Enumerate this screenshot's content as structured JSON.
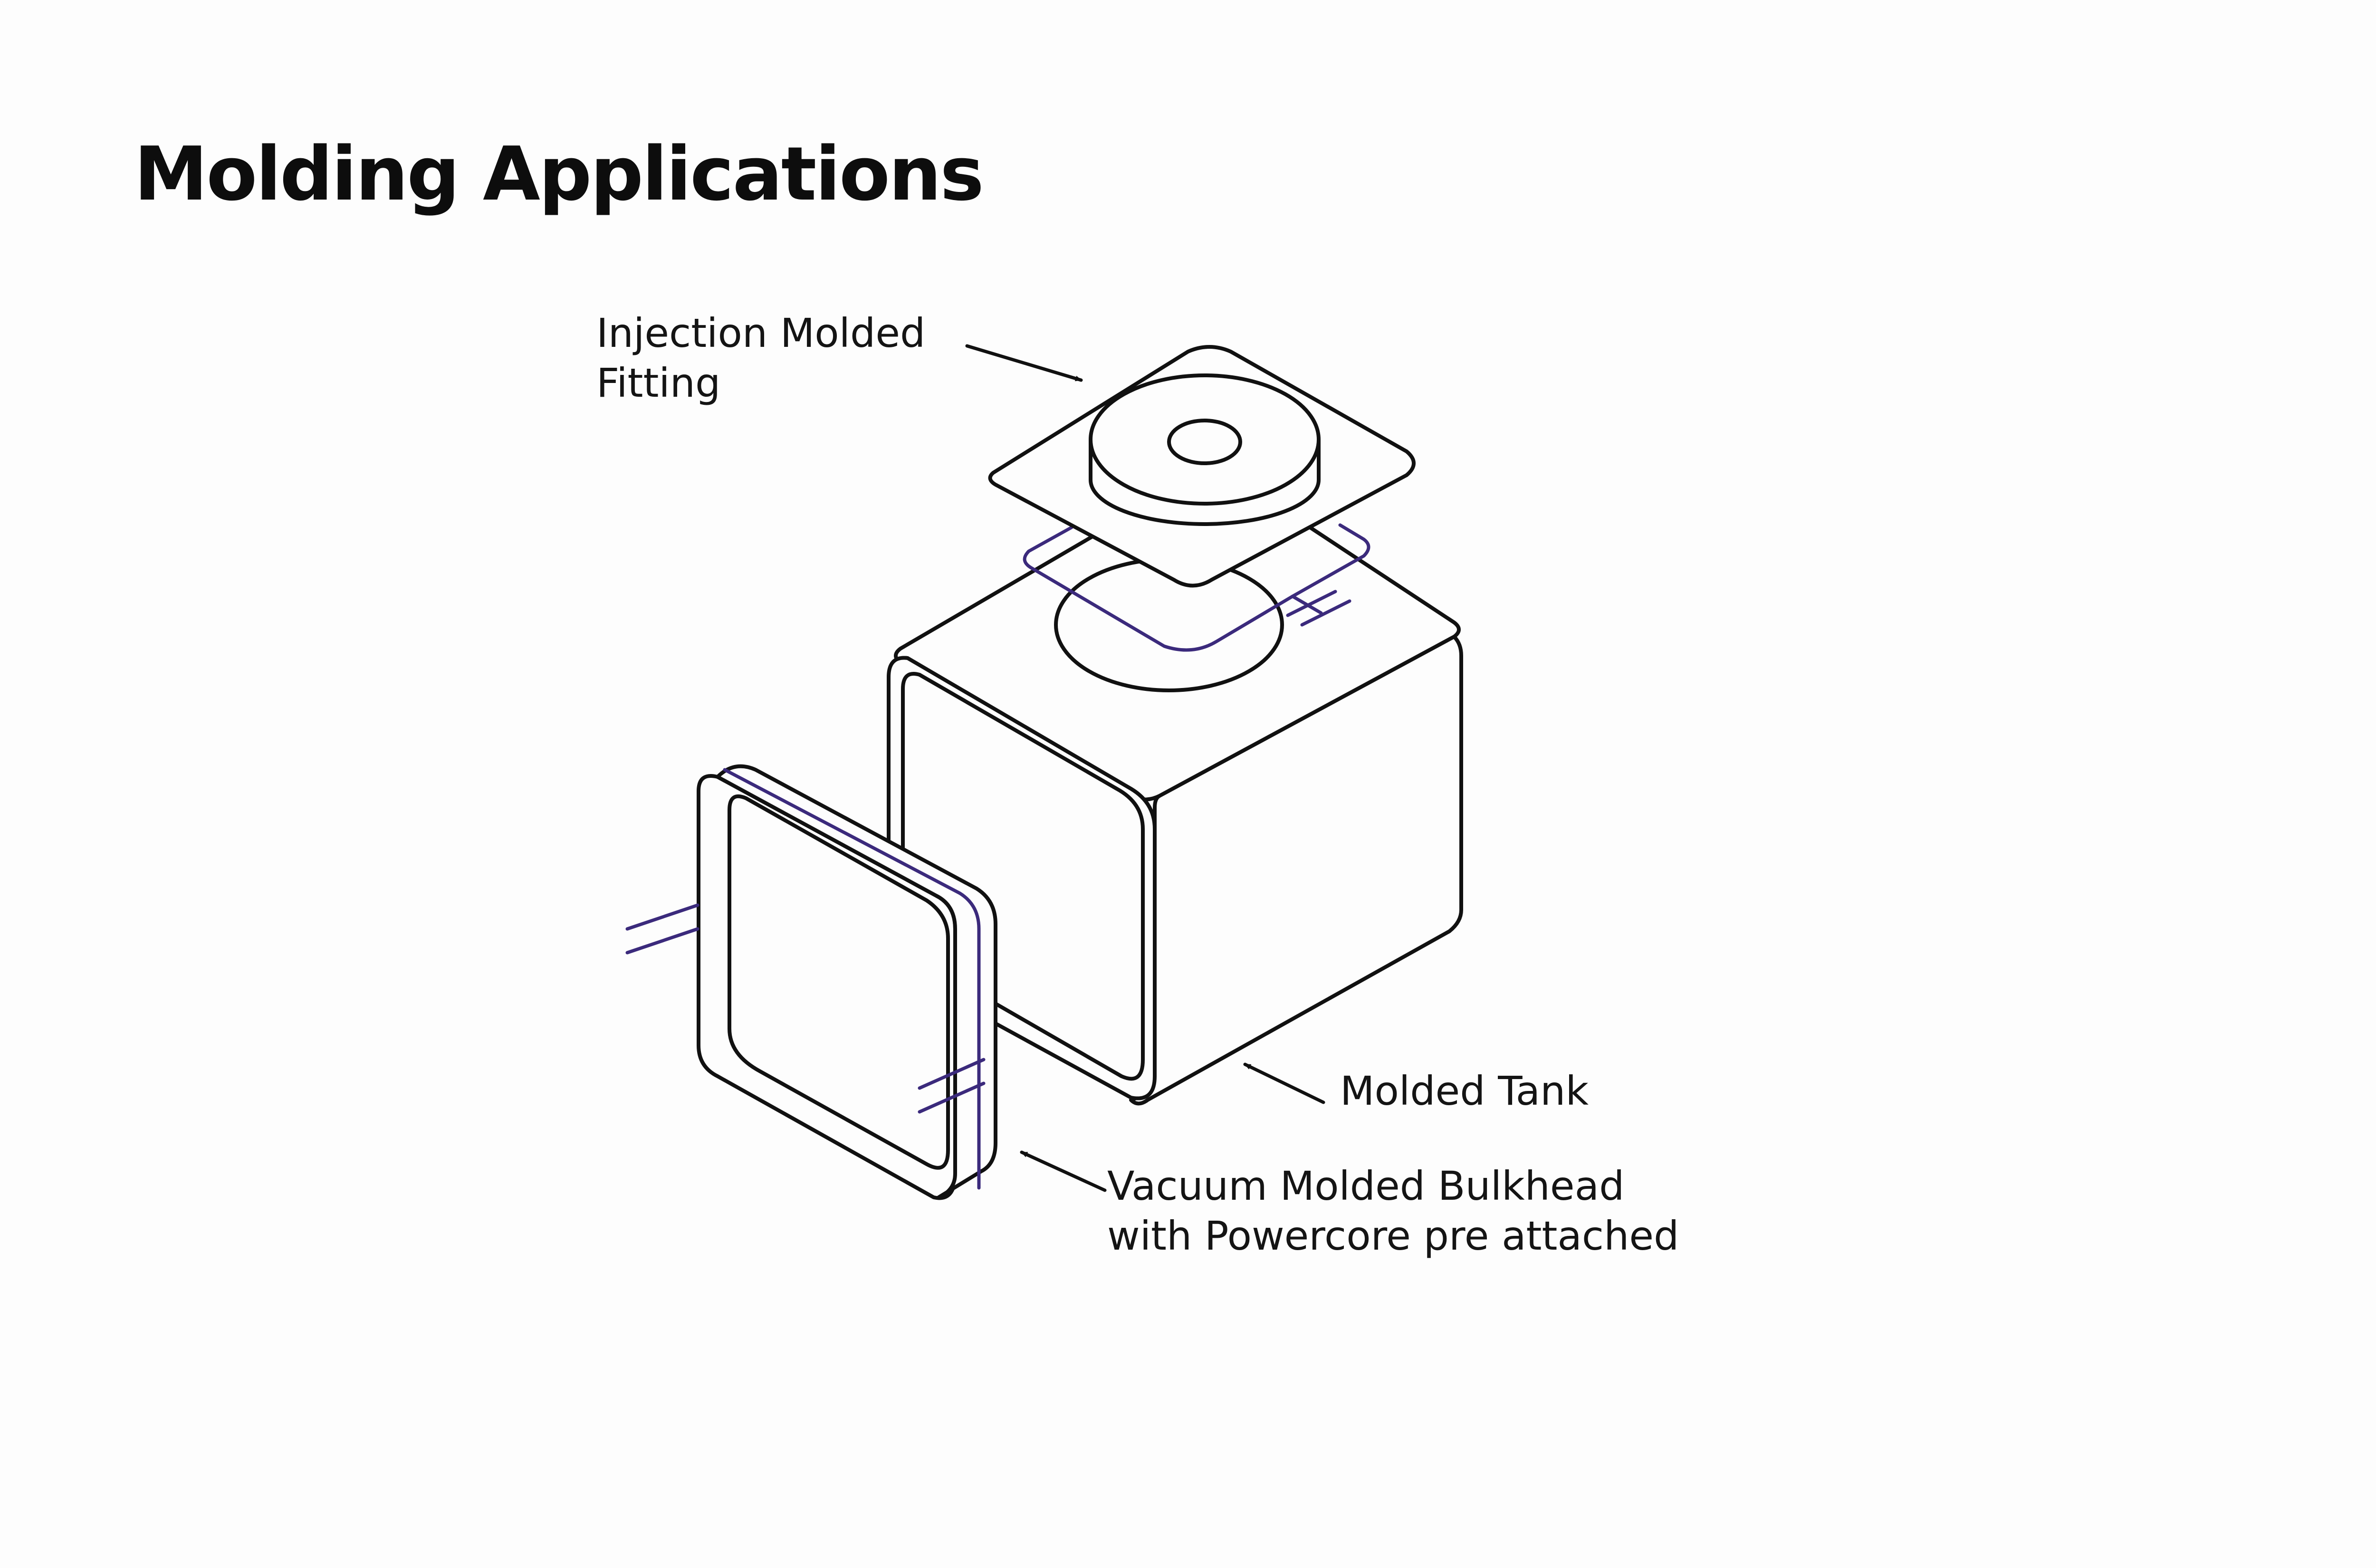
{
  "title": "Molding Applications",
  "colors": {
    "outline": "#111111",
    "powercore_accent": "#3b2a7c",
    "hidden_edge": "#c8c8c8",
    "background": "#fdfdfd"
  },
  "labels": {
    "fitting": [
      "Injection Molded",
      "Fitting"
    ],
    "tank": [
      "Molded Tank"
    ],
    "bulkhead": [
      "Vacuum Molded Bulkhead",
      "with Powercore pre attached"
    ]
  }
}
